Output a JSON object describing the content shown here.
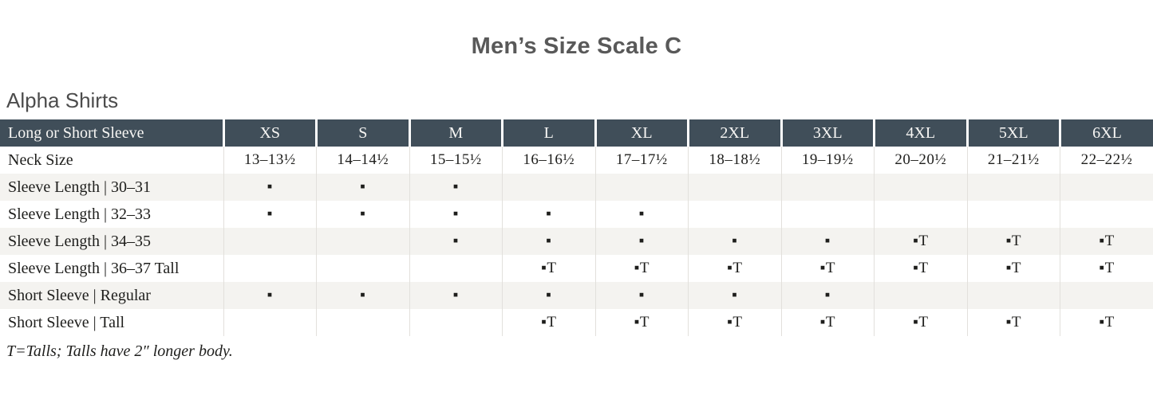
{
  "page": {
    "title": "Men’s Size Scale C",
    "section_heading": "Alpha Shirts",
    "footnote": "T=Talls; Talls have 2″ longer body."
  },
  "colors": {
    "header_bg": "#404e59",
    "header_text": "#f7f6f4",
    "stripe_bg": "#f4f3f0",
    "grid_line": "#e2e0dc",
    "body_text": "#1e1e1c",
    "title_text": "#595959",
    "heading_text": "#4c4c4c"
  },
  "markers": {
    "available": "▪",
    "available_tall": "▪T"
  },
  "table": {
    "corner_label": "Long or Short Sleeve",
    "size_columns": [
      "XS",
      "S",
      "M",
      "L",
      "XL",
      "2XL",
      "3XL",
      "4XL",
      "5XL",
      "6XL"
    ],
    "rows": [
      {
        "label": "Neck Size",
        "cells": [
          "13–13½",
          "14–14½",
          "15–15½",
          "16–16½",
          "17–17½",
          "18–18½",
          "19–19½",
          "20–20½",
          "21–21½",
          "22–22½"
        ]
      },
      {
        "label": "Sleeve Length  |  30–31",
        "cells": [
          "▪",
          "▪",
          "▪",
          "",
          "",
          "",
          "",
          "",
          "",
          ""
        ]
      },
      {
        "label": "Sleeve Length  |  32–33",
        "cells": [
          "▪",
          "▪",
          "▪",
          "▪",
          "▪",
          "",
          "",
          "",
          "",
          ""
        ]
      },
      {
        "label": "Sleeve Length  |  34–35",
        "cells": [
          "",
          "",
          "▪",
          "▪",
          "▪",
          "▪",
          "▪",
          "▪T",
          "▪T",
          "▪T"
        ]
      },
      {
        "label": "Sleeve Length  |  36–37 Tall",
        "cells": [
          "",
          "",
          "",
          "▪T",
          "▪T",
          "▪T",
          "▪T",
          "▪T",
          "▪T",
          "▪T"
        ]
      },
      {
        "label": "Short Sleeve  |  Regular",
        "cells": [
          "▪",
          "▪",
          "▪",
          "▪",
          "▪",
          "▪",
          "▪",
          "",
          "",
          ""
        ]
      },
      {
        "label": "Short Sleeve  |  Tall",
        "cells": [
          "",
          "",
          "",
          "▪T",
          "▪T",
          "▪T",
          "▪T",
          "▪T",
          "▪T",
          "▪T"
        ]
      }
    ]
  }
}
